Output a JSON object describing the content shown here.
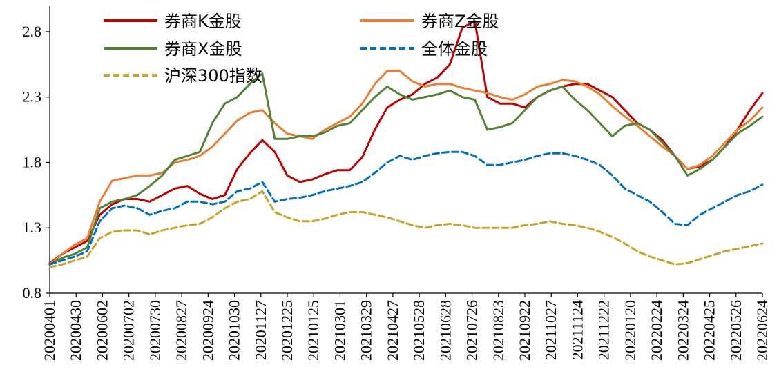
{
  "chart_data": {
    "type": "line",
    "x_tick_labels": [
      "20200401",
      "20200430",
      "20200602",
      "20200702",
      "20200730",
      "20200827",
      "20200924",
      "20201030",
      "20201127",
      "20201225",
      "20210125",
      "20210301",
      "20210329",
      "20210427",
      "20210528",
      "20210628",
      "20210726",
      "20210823",
      "20210922",
      "20211027",
      "20211124",
      "20211222",
      "20220120",
      "20220224",
      "20220324",
      "20220425",
      "20220526",
      "20220624"
    ],
    "y_tick_labels": [
      "0.8",
      "1.3",
      "1.8",
      "2.3",
      "2.8"
    ],
    "ylim": [
      0.8,
      3.0
    ],
    "legend_position": "top-left",
    "series": [
      {
        "name": "券商K金股",
        "color": "#C00000",
        "dash": "solid",
        "values": [
          1.03,
          1.1,
          1.15,
          1.2,
          1.4,
          1.48,
          1.52,
          1.52,
          1.5,
          1.55,
          1.6,
          1.62,
          1.56,
          1.52,
          1.55,
          1.75,
          1.87,
          1.97,
          1.88,
          1.7,
          1.65,
          1.67,
          1.71,
          1.74,
          1.74,
          1.84,
          2.05,
          2.22,
          2.28,
          2.32,
          2.4,
          2.45,
          2.55,
          2.83,
          2.88,
          2.3,
          2.25,
          2.25,
          2.22,
          2.3,
          2.35,
          2.38,
          2.4,
          2.4,
          2.35,
          2.3,
          2.2,
          2.1,
          2.05,
          1.97,
          1.85,
          1.75,
          1.77,
          1.82,
          1.92,
          2.05,
          2.2,
          2.33
        ]
      },
      {
        "name": "券商Z金股",
        "color": "#ED7D31",
        "dash": "solid",
        "values": [
          1.02,
          1.1,
          1.17,
          1.22,
          1.5,
          1.66,
          1.68,
          1.7,
          1.7,
          1.72,
          1.8,
          1.82,
          1.85,
          1.92,
          2.02,
          2.12,
          2.18,
          2.2,
          2.1,
          2.02,
          2.0,
          1.98,
          2.05,
          2.1,
          2.15,
          2.25,
          2.4,
          2.5,
          2.5,
          2.42,
          2.38,
          2.4,
          2.4,
          2.37,
          2.35,
          2.33,
          2.3,
          2.28,
          2.32,
          2.38,
          2.4,
          2.43,
          2.42,
          2.38,
          2.32,
          2.23,
          2.15,
          2.08,
          2.0,
          1.92,
          1.85,
          1.75,
          1.78,
          1.85,
          1.95,
          2.05,
          2.12,
          2.22
        ]
      },
      {
        "name": "券商X金股",
        "color": "#548235",
        "dash": "solid",
        "values": [
          1.02,
          1.07,
          1.1,
          1.15,
          1.45,
          1.5,
          1.52,
          1.55,
          1.62,
          1.7,
          1.82,
          1.85,
          1.88,
          2.1,
          2.25,
          2.3,
          2.4,
          2.48,
          1.98,
          1.98,
          2.0,
          2.0,
          2.03,
          2.08,
          2.1,
          2.2,
          2.3,
          2.38,
          2.32,
          2.28,
          2.3,
          2.32,
          2.35,
          2.3,
          2.28,
          2.05,
          2.07,
          2.1,
          2.2,
          2.3,
          2.35,
          2.38,
          2.28,
          2.2,
          2.1,
          2.0,
          2.08,
          2.1,
          2.05,
          1.95,
          1.85,
          1.7,
          1.75,
          1.82,
          1.92,
          2.02,
          2.08,
          2.15
        ]
      },
      {
        "name": "全体金股",
        "color": "#0070C0",
        "dash": "dashed",
        "values": [
          1.02,
          1.05,
          1.08,
          1.12,
          1.35,
          1.45,
          1.47,
          1.45,
          1.4,
          1.43,
          1.45,
          1.5,
          1.5,
          1.48,
          1.5,
          1.58,
          1.6,
          1.65,
          1.5,
          1.52,
          1.53,
          1.55,
          1.58,
          1.6,
          1.62,
          1.65,
          1.72,
          1.8,
          1.85,
          1.82,
          1.85,
          1.87,
          1.88,
          1.88,
          1.85,
          1.78,
          1.78,
          1.8,
          1.82,
          1.85,
          1.87,
          1.87,
          1.85,
          1.82,
          1.78,
          1.7,
          1.6,
          1.55,
          1.5,
          1.42,
          1.33,
          1.32,
          1.4,
          1.45,
          1.5,
          1.55,
          1.58,
          1.63
        ]
      },
      {
        "name": "沪深300指数",
        "color": "#C9A227",
        "dash": "dashed",
        "values": [
          1.0,
          1.02,
          1.05,
          1.08,
          1.22,
          1.27,
          1.28,
          1.28,
          1.25,
          1.28,
          1.3,
          1.32,
          1.33,
          1.38,
          1.45,
          1.5,
          1.52,
          1.58,
          1.42,
          1.38,
          1.35,
          1.35,
          1.37,
          1.4,
          1.42,
          1.42,
          1.4,
          1.38,
          1.35,
          1.32,
          1.3,
          1.32,
          1.33,
          1.32,
          1.3,
          1.3,
          1.3,
          1.3,
          1.32,
          1.33,
          1.35,
          1.33,
          1.32,
          1.3,
          1.27,
          1.23,
          1.18,
          1.12,
          1.08,
          1.05,
          1.02,
          1.03,
          1.06,
          1.09,
          1.12,
          1.14,
          1.16,
          1.18
        ]
      }
    ]
  }
}
